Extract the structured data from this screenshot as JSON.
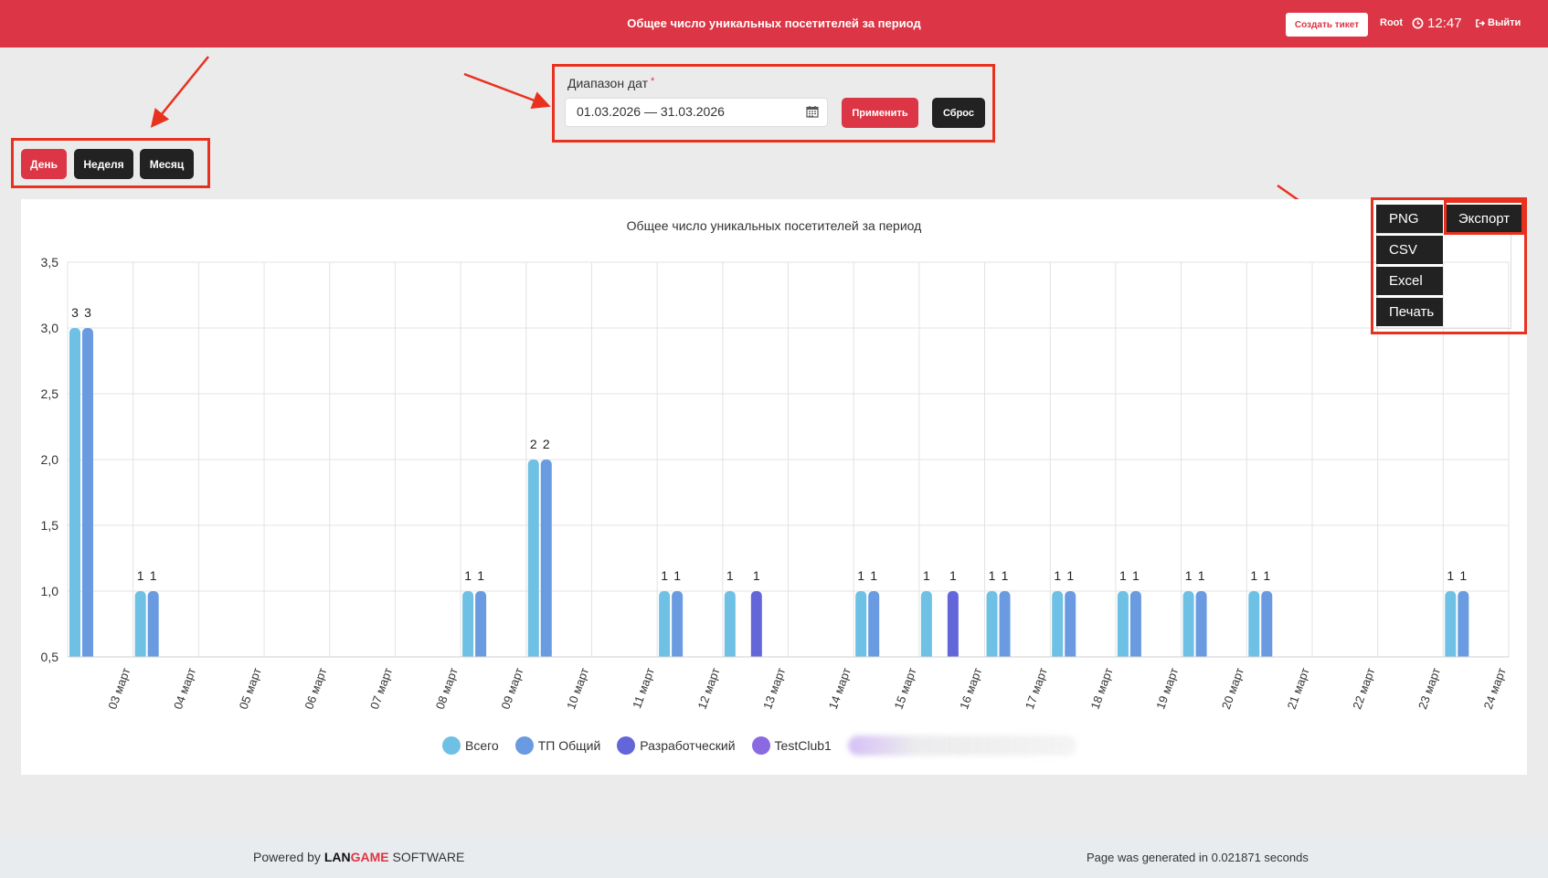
{
  "header": {
    "title": "Общее число уникальных посетителей за период",
    "create_ticket_label": "Создать тикет",
    "user": "Root",
    "time": "12:47",
    "logout_label": "Выйти"
  },
  "period_buttons": [
    {
      "label": "День",
      "active": true
    },
    {
      "label": "Неделя",
      "active": false
    },
    {
      "label": "Месяц",
      "active": false
    }
  ],
  "date_range": {
    "label": "Диапазон дат",
    "required_mark": "*",
    "value": "01.03.2026 — 31.03.2026",
    "apply_label": "Применить",
    "reset_label": "Сброс"
  },
  "export_menu": {
    "main_label": "Экспорт",
    "items": [
      "PNG",
      "CSV",
      "Excel",
      "Печать"
    ]
  },
  "chart_data": {
    "type": "bar",
    "title": "Общее число уникальных посетителей за период",
    "categories": [
      "03 март",
      "04 март",
      "05 март",
      "06 март",
      "07 март",
      "08 март",
      "09 март",
      "10 март",
      "11 март",
      "12 март",
      "13 март",
      "14 март",
      "15 март",
      "16 март",
      "17 март",
      "18 март",
      "19 март",
      "20 март",
      "21 март",
      "22 март",
      "23 март",
      "24 март"
    ],
    "ylim": [
      0.5,
      3.5
    ],
    "yticks": [
      "0,5",
      "1,0",
      "1,5",
      "2,0",
      "2,5",
      "3,0",
      "3,5"
    ],
    "grid": true,
    "legend_position": "bottom",
    "series": [
      {
        "name": "Всего",
        "color": "#6ec1e4",
        "values": [
          3,
          1,
          null,
          null,
          null,
          null,
          1,
          2,
          null,
          1,
          1,
          null,
          1,
          1,
          1,
          1,
          1,
          1,
          1,
          null,
          null,
          1
        ]
      },
      {
        "name": "ТП Общий",
        "color": "#6a9be0",
        "values": [
          3,
          1,
          null,
          null,
          null,
          null,
          1,
          2,
          null,
          1,
          null,
          null,
          1,
          null,
          1,
          1,
          1,
          1,
          1,
          null,
          null,
          1
        ]
      },
      {
        "name": "Разработческий",
        "color": "#6366d9",
        "values": [
          null,
          null,
          null,
          null,
          null,
          null,
          null,
          null,
          null,
          null,
          1,
          null,
          null,
          1,
          null,
          null,
          null,
          null,
          null,
          null,
          null,
          null
        ]
      },
      {
        "name": "TestClub1",
        "color": "#8a6ae0",
        "values": [
          null,
          null,
          null,
          null,
          null,
          null,
          null,
          null,
          null,
          null,
          null,
          null,
          null,
          null,
          null,
          null,
          null,
          null,
          null,
          null,
          null,
          null
        ]
      }
    ]
  },
  "footer": {
    "powered_by": "Powered by",
    "brand_lan": "LAN",
    "brand_game": "GAME",
    "brand_software": "SOFTWARE",
    "generated": "Page was generated in 0.021871 seconds"
  }
}
